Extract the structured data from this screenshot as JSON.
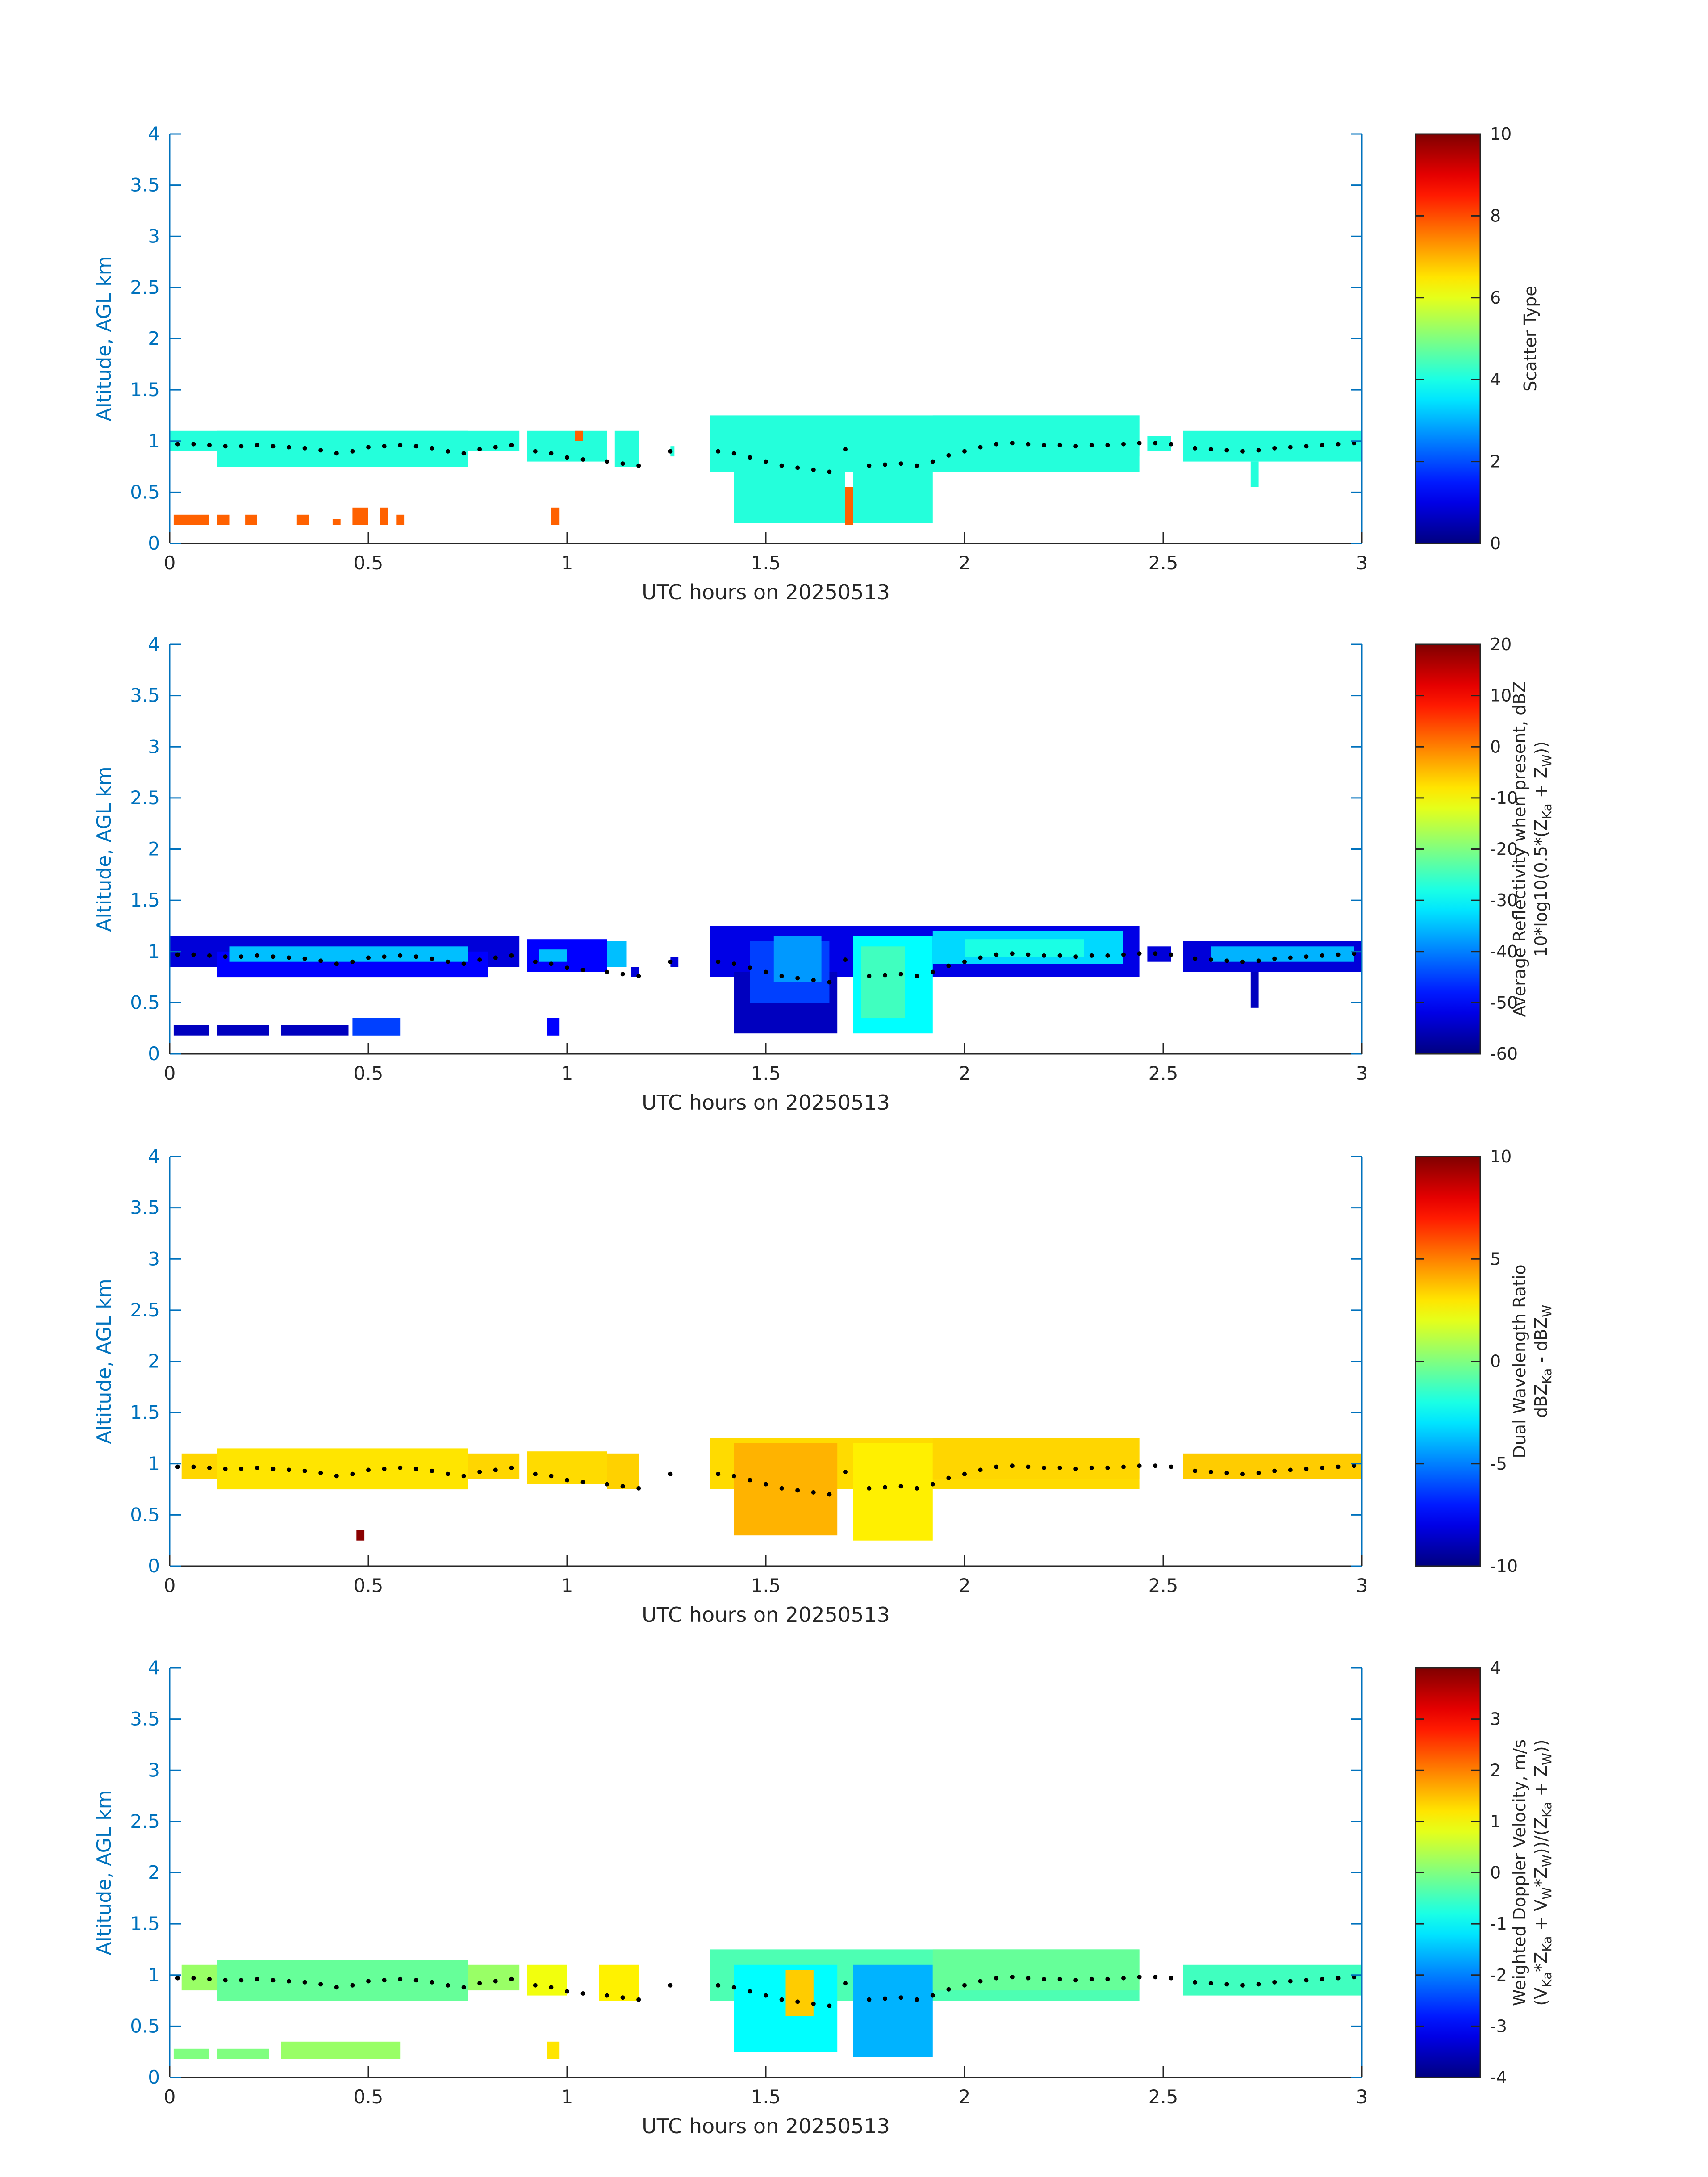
{
  "figure": {
    "background": "#ffffff",
    "axis_color": "#0072BD",
    "text_color": "#262626"
  },
  "chart_data": [
    {
      "type": "heatmap",
      "x_values_hours": [
        0,
        0.5,
        1,
        1.5,
        2,
        2.5,
        3
      ],
      "x_ticks": [
        "0",
        "0.5",
        "1",
        "1.5",
        "2",
        "2.5",
        "3"
      ],
      "xlabel": "UTC hours on 20250513",
      "xlim": [
        0,
        3
      ],
      "y_ticks": [
        "0",
        "0.5",
        "1",
        "1.5",
        "2",
        "2.5",
        "3",
        "3.5",
        "4"
      ],
      "ylabel": "Altitude, AGL km",
      "ylim": [
        0,
        4
      ],
      "colorbar": {
        "label_lines": [
          "Scatter Type"
        ],
        "ticks": [
          "0",
          "2",
          "4",
          "6",
          "8",
          "10"
        ],
        "range": [
          0,
          10
        ]
      },
      "layers": [
        {
          "xs": [
            0.0,
            0.88
          ],
          "ys": [
            0.9,
            1.1
          ],
          "value": 4.1
        },
        {
          "xs": [
            0.12,
            0.75
          ],
          "ys": [
            0.75,
            1.1
          ],
          "value": 4.1
        },
        {
          "xs": [
            0.9,
            1.1
          ],
          "ys": [
            0.8,
            1.1
          ],
          "value": 4.1
        },
        {
          "xs": [
            1.12,
            1.18
          ],
          "ys": [
            0.75,
            1.1
          ],
          "value": 4.1
        },
        {
          "xs": [
            1.26,
            1.27
          ],
          "ys": [
            0.85,
            0.95
          ],
          "value": 4.1
        },
        {
          "xs": [
            1.36,
            2.44
          ],
          "ys": [
            0.7,
            1.25
          ],
          "value": 4.1
        },
        {
          "xs": [
            1.42,
            1.7
          ],
          "ys": [
            0.2,
            1.1
          ],
          "value": 4.1
        },
        {
          "xs": [
            1.72,
            1.92
          ],
          "ys": [
            0.2,
            1.1
          ],
          "value": 4.1
        },
        {
          "xs": [
            1.92,
            2.44
          ],
          "ys": [
            0.85,
            1.25
          ],
          "value": 4.1
        },
        {
          "xs": [
            2.46,
            2.52
          ],
          "ys": [
            0.9,
            1.05
          ],
          "value": 4.1
        },
        {
          "xs": [
            2.55,
            3.0
          ],
          "ys": [
            0.8,
            1.1
          ],
          "value": 4.1
        },
        {
          "xs": [
            2.72,
            2.74
          ],
          "ys": [
            0.55,
            0.8
          ],
          "value": 4.1
        },
        {
          "xs": [
            0.01,
            0.1
          ],
          "ys": [
            0.18,
            0.28
          ],
          "value": 7.8
        },
        {
          "xs": [
            0.12,
            0.15
          ],
          "ys": [
            0.18,
            0.28
          ],
          "value": 7.8
        },
        {
          "xs": [
            0.19,
            0.22
          ],
          "ys": [
            0.18,
            0.28
          ],
          "value": 7.8
        },
        {
          "xs": [
            0.32,
            0.35
          ],
          "ys": [
            0.18,
            0.28
          ],
          "value": 7.8
        },
        {
          "xs": [
            0.41,
            0.43
          ],
          "ys": [
            0.18,
            0.24
          ],
          "value": 7.8
        },
        {
          "xs": [
            0.46,
            0.5
          ],
          "ys": [
            0.18,
            0.35
          ],
          "value": 7.8
        },
        {
          "xs": [
            0.53,
            0.55
          ],
          "ys": [
            0.18,
            0.35
          ],
          "value": 7.8
        },
        {
          "xs": [
            0.57,
            0.59
          ],
          "ys": [
            0.18,
            0.28
          ],
          "value": 7.8
        },
        {
          "xs": [
            0.96,
            0.98
          ],
          "ys": [
            0.18,
            0.35
          ],
          "value": 7.8
        },
        {
          "xs": [
            1.02,
            1.04
          ],
          "ys": [
            1.0,
            1.1
          ],
          "value": 7.8
        },
        {
          "xs": [
            1.7,
            1.72
          ],
          "ys": [
            0.18,
            0.55
          ],
          "value": 7.8
        }
      ]
    },
    {
      "type": "heatmap",
      "x_values_hours": [
        0,
        0.5,
        1,
        1.5,
        2,
        2.5,
        3
      ],
      "x_ticks": [
        "0",
        "0.5",
        "1",
        "1.5",
        "2",
        "2.5",
        "3"
      ],
      "xlabel": "UTC hours on 20250513",
      "xlim": [
        0,
        3
      ],
      "y_ticks": [
        "0",
        "0.5",
        "1",
        "1.5",
        "2",
        "2.5",
        "3",
        "3.5",
        "4"
      ],
      "ylabel": "Altitude, AGL km",
      "ylim": [
        0,
        4
      ],
      "colorbar": {
        "label_lines": [
          "Average Reflectivity when present, dBZ",
          "10*log10(0.5*(Z",
          "Ka",
          " + Z",
          "W",
          "))"
        ],
        "ticks": [
          "-60",
          "-50",
          "-40",
          "-30",
          "-20",
          "-10",
          "0",
          "10",
          "20"
        ],
        "range": [
          -60,
          20
        ]
      },
      "layers": [
        {
          "xs": [
            0.0,
            0.88
          ],
          "ys": [
            0.85,
            1.15
          ],
          "value": -53
        },
        {
          "xs": [
            0.12,
            0.8
          ],
          "ys": [
            0.75,
            1.0
          ],
          "value": -50
        },
        {
          "xs": [
            0.15,
            0.75
          ],
          "ys": [
            0.9,
            1.05
          ],
          "value": -35
        },
        {
          "xs": [
            0.9,
            1.1
          ],
          "ys": [
            0.8,
            1.12
          ],
          "value": -50
        },
        {
          "xs": [
            0.93,
            1.0
          ],
          "ys": [
            0.9,
            1.02
          ],
          "value": -35
        },
        {
          "xs": [
            1.1,
            1.15
          ],
          "ys": [
            0.85,
            1.1
          ],
          "value": -35
        },
        {
          "xs": [
            1.16,
            1.18
          ],
          "ys": [
            0.75,
            0.85
          ],
          "value": -53
        },
        {
          "xs": [
            1.26,
            1.28
          ],
          "ys": [
            0.85,
            0.95
          ],
          "value": -53
        },
        {
          "xs": [
            1.36,
            2.44
          ],
          "ys": [
            0.75,
            1.25
          ],
          "value": -52
        },
        {
          "xs": [
            1.42,
            1.68
          ],
          "ys": [
            0.2,
            0.8
          ],
          "value": -55
        },
        {
          "xs": [
            1.46,
            1.66
          ],
          "ys": [
            0.5,
            1.1
          ],
          "value": -45
        },
        {
          "xs": [
            1.52,
            1.64
          ],
          "ys": [
            0.7,
            1.15
          ],
          "value": -38
        },
        {
          "xs": [
            1.72,
            1.92
          ],
          "ys": [
            0.2,
            1.15
          ],
          "value": -30
        },
        {
          "xs": [
            1.74,
            1.85
          ],
          "ys": [
            0.35,
            1.05
          ],
          "value": -25
        },
        {
          "xs": [
            1.92,
            2.4
          ],
          "ys": [
            0.88,
            1.2
          ],
          "value": -33
        },
        {
          "xs": [
            2.0,
            2.3
          ],
          "ys": [
            0.95,
            1.12
          ],
          "value": -28
        },
        {
          "xs": [
            2.46,
            2.52
          ],
          "ys": [
            0.9,
            1.05
          ],
          "value": -53
        },
        {
          "xs": [
            2.55,
            3.0
          ],
          "ys": [
            0.8,
            1.1
          ],
          "value": -53
        },
        {
          "xs": [
            2.62,
            2.98
          ],
          "ys": [
            0.9,
            1.05
          ],
          "value": -36
        },
        {
          "xs": [
            2.72,
            2.74
          ],
          "ys": [
            0.45,
            0.8
          ],
          "value": -55
        },
        {
          "xs": [
            0.01,
            0.1
          ],
          "ys": [
            0.18,
            0.28
          ],
          "value": -55
        },
        {
          "xs": [
            0.12,
            0.25
          ],
          "ys": [
            0.18,
            0.28
          ],
          "value": -55
        },
        {
          "xs": [
            0.28,
            0.45
          ],
          "ys": [
            0.18,
            0.28
          ],
          "value": -55
        },
        {
          "xs": [
            0.46,
            0.58
          ],
          "ys": [
            0.18,
            0.35
          ],
          "value": -45
        },
        {
          "xs": [
            0.95,
            0.98
          ],
          "ys": [
            0.18,
            0.35
          ],
          "value": -50
        }
      ]
    },
    {
      "type": "heatmap",
      "x_values_hours": [
        0,
        0.5,
        1,
        1.5,
        2,
        2.5,
        3
      ],
      "x_ticks": [
        "0",
        "0.5",
        "1",
        "1.5",
        "2",
        "2.5",
        "3"
      ],
      "xlabel": "UTC hours on 20250513",
      "xlim": [
        0,
        3
      ],
      "y_ticks": [
        "0",
        "0.5",
        "1",
        "1.5",
        "2",
        "2.5",
        "3",
        "3.5",
        "4"
      ],
      "ylabel": "Altitude, AGL km",
      "ylim": [
        0,
        4
      ],
      "colorbar": {
        "label_lines": [
          "Dual Wavelength Ratio",
          "dBZ",
          "Ka",
          " - dBZ",
          "W"
        ],
        "ticks": [
          "-10",
          "-5",
          "0",
          "5",
          "10"
        ],
        "range": [
          -10,
          10
        ]
      },
      "layers": [
        {
          "xs": [
            0.03,
            0.88
          ],
          "ys": [
            0.85,
            1.1
          ],
          "value": 3.3
        },
        {
          "xs": [
            0.12,
            0.75
          ],
          "ys": [
            0.75,
            1.15
          ],
          "value": 3.0
        },
        {
          "xs": [
            0.9,
            1.1
          ],
          "ys": [
            0.8,
            1.12
          ],
          "value": 3.2
        },
        {
          "xs": [
            1.1,
            1.18
          ],
          "ys": [
            0.75,
            1.1
          ],
          "value": 3.4
        },
        {
          "xs": [
            1.36,
            2.44
          ],
          "ys": [
            0.75,
            1.25
          ],
          "value": 3.2
        },
        {
          "xs": [
            1.42,
            1.68
          ],
          "ys": [
            0.3,
            1.2
          ],
          "value": 4.0
        },
        {
          "xs": [
            1.72,
            1.92
          ],
          "ys": [
            0.25,
            1.2
          ],
          "value": 2.8
        },
        {
          "xs": [
            1.92,
            2.44
          ],
          "ys": [
            0.85,
            1.25
          ],
          "value": 3.3
        },
        {
          "xs": [
            2.55,
            3.0
          ],
          "ys": [
            0.85,
            1.1
          ],
          "value": 3.5
        },
        {
          "xs": [
            0.47,
            0.49
          ],
          "ys": [
            0.25,
            0.35
          ],
          "value": 9.8
        }
      ]
    },
    {
      "type": "heatmap",
      "x_values_hours": [
        0,
        0.5,
        1,
        1.5,
        2,
        2.5,
        3
      ],
      "x_ticks": [
        "0",
        "0.5",
        "1",
        "1.5",
        "2",
        "2.5",
        "3"
      ],
      "xlabel": "UTC hours on 20250513",
      "xlim": [
        0,
        3
      ],
      "y_ticks": [
        "0",
        "0.5",
        "1",
        "1.5",
        "2",
        "2.5",
        "3",
        "3.5",
        "4"
      ],
      "ylabel": "Altitude, AGL km",
      "ylim": [
        0,
        4
      ],
      "colorbar": {
        "label_lines": [
          "Weighted Doppler Velocity, m/s",
          "(V",
          "Ka",
          "*Z",
          "Ka",
          " + V",
          "W",
          "*Z",
          "W",
          "))/(Z",
          "Ka",
          " + Z",
          "W",
          "))"
        ],
        "ticks": [
          "-4",
          "-3",
          "-2",
          "-1",
          "0",
          "1",
          "2",
          "3",
          "4"
        ],
        "range": [
          -4,
          4
        ]
      },
      "layers": [
        {
          "xs": [
            0.03,
            0.88
          ],
          "ys": [
            0.85,
            1.1
          ],
          "value": 0.2
        },
        {
          "xs": [
            0.12,
            0.75
          ],
          "ys": [
            0.75,
            1.15
          ],
          "value": -0.2
        },
        {
          "xs": [
            0.9,
            1.0
          ],
          "ys": [
            0.8,
            1.1
          ],
          "value": 0.9
        },
        {
          "xs": [
            1.08,
            1.18
          ],
          "ys": [
            0.75,
            1.1
          ],
          "value": 1.1
        },
        {
          "xs": [
            1.36,
            2.44
          ],
          "ys": [
            0.75,
            1.25
          ],
          "value": -0.4
        },
        {
          "xs": [
            1.42,
            1.68
          ],
          "ys": [
            0.25,
            1.1
          ],
          "value": -1.0
        },
        {
          "xs": [
            1.55,
            1.62
          ],
          "ys": [
            0.6,
            1.05
          ],
          "value": 1.4
        },
        {
          "xs": [
            1.72,
            1.92
          ],
          "ys": [
            0.2,
            1.1
          ],
          "value": -1.6
        },
        {
          "xs": [
            1.92,
            2.44
          ],
          "ys": [
            0.85,
            1.25
          ],
          "value": -0.2
        },
        {
          "xs": [
            2.55,
            3.0
          ],
          "ys": [
            0.8,
            1.1
          ],
          "value": -0.5
        },
        {
          "xs": [
            0.01,
            0.1
          ],
          "ys": [
            0.18,
            0.28
          ],
          "value": 0.0
        },
        {
          "xs": [
            0.12,
            0.25
          ],
          "ys": [
            0.18,
            0.28
          ],
          "value": 0.0
        },
        {
          "xs": [
            0.28,
            0.58
          ],
          "ys": [
            0.18,
            0.35
          ],
          "value": 0.2
        },
        {
          "xs": [
            0.95,
            0.98
          ],
          "ys": [
            0.18,
            0.35
          ],
          "value": 1.2
        }
      ]
    }
  ],
  "cloud_base_markers": {
    "color": "#000000",
    "points": [
      [
        0.02,
        0.97
      ],
      [
        0.06,
        0.97
      ],
      [
        0.1,
        0.96
      ],
      [
        0.14,
        0.95
      ],
      [
        0.18,
        0.95
      ],
      [
        0.22,
        0.96
      ],
      [
        0.26,
        0.95
      ],
      [
        0.3,
        0.94
      ],
      [
        0.34,
        0.93
      ],
      [
        0.38,
        0.91
      ],
      [
        0.42,
        0.88
      ],
      [
        0.46,
        0.9
      ],
      [
        0.5,
        0.94
      ],
      [
        0.54,
        0.95
      ],
      [
        0.58,
        0.96
      ],
      [
        0.62,
        0.95
      ],
      [
        0.66,
        0.93
      ],
      [
        0.7,
        0.9
      ],
      [
        0.74,
        0.88
      ],
      [
        0.78,
        0.92
      ],
      [
        0.82,
        0.94
      ],
      [
        0.86,
        0.96
      ],
      [
        0.92,
        0.9
      ],
      [
        0.96,
        0.88
      ],
      [
        1.0,
        0.84
      ],
      [
        1.04,
        0.82
      ],
      [
        1.1,
        0.8
      ],
      [
        1.14,
        0.78
      ],
      [
        1.18,
        0.76
      ],
      [
        1.26,
        0.9
      ],
      [
        1.38,
        0.9
      ],
      [
        1.42,
        0.88
      ],
      [
        1.46,
        0.84
      ],
      [
        1.5,
        0.8
      ],
      [
        1.54,
        0.76
      ],
      [
        1.58,
        0.74
      ],
      [
        1.62,
        0.72
      ],
      [
        1.66,
        0.7
      ],
      [
        1.7,
        0.92
      ],
      [
        1.76,
        0.76
      ],
      [
        1.8,
        0.77
      ],
      [
        1.84,
        0.78
      ],
      [
        1.88,
        0.76
      ],
      [
        1.92,
        0.8
      ],
      [
        1.96,
        0.86
      ],
      [
        2.0,
        0.9
      ],
      [
        2.04,
        0.94
      ],
      [
        2.08,
        0.97
      ],
      [
        2.12,
        0.98
      ],
      [
        2.16,
        0.97
      ],
      [
        2.2,
        0.96
      ],
      [
        2.24,
        0.96
      ],
      [
        2.28,
        0.95
      ],
      [
        2.32,
        0.96
      ],
      [
        2.36,
        0.96
      ],
      [
        2.4,
        0.97
      ],
      [
        2.44,
        0.98
      ],
      [
        2.48,
        0.98
      ],
      [
        2.52,
        0.97
      ],
      [
        2.58,
        0.93
      ],
      [
        2.62,
        0.92
      ],
      [
        2.66,
        0.91
      ],
      [
        2.7,
        0.9
      ],
      [
        2.74,
        0.91
      ],
      [
        2.78,
        0.93
      ],
      [
        2.82,
        0.94
      ],
      [
        2.86,
        0.95
      ],
      [
        2.9,
        0.96
      ],
      [
        2.94,
        0.97
      ],
      [
        2.98,
        0.98
      ]
    ]
  }
}
